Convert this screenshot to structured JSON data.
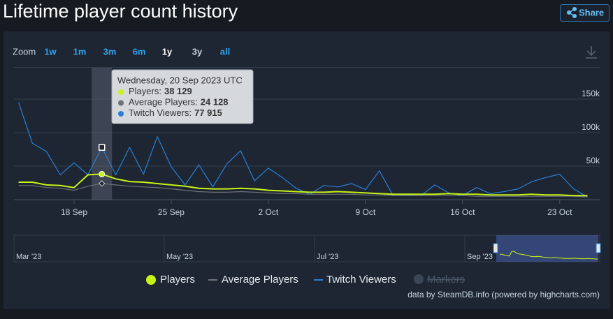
{
  "chart_data": {
    "type": "line",
    "title": "Lifetime player count history",
    "share_label": "Share",
    "zoom_label": "Zoom",
    "zoom_options": [
      "1w",
      "1m",
      "3m",
      "6m",
      "1y",
      "3y",
      "all"
    ],
    "x": [
      "2023-09-14",
      "2023-09-15",
      "2023-09-16",
      "2023-09-17",
      "2023-09-18",
      "2023-09-19",
      "2023-09-20",
      "2023-09-21",
      "2023-09-22",
      "2023-09-23",
      "2023-09-24",
      "2023-09-25",
      "2023-09-26",
      "2023-09-27",
      "2023-09-28",
      "2023-09-29",
      "2023-09-30",
      "2023-10-01",
      "2023-10-02",
      "2023-10-03",
      "2023-10-04",
      "2023-10-05",
      "2023-10-06",
      "2023-10-07",
      "2023-10-08",
      "2023-10-09",
      "2023-10-10",
      "2023-10-11",
      "2023-10-12",
      "2023-10-13",
      "2023-10-14",
      "2023-10-15",
      "2023-10-16",
      "2023-10-17",
      "2023-10-18",
      "2023-10-19",
      "2023-10-20",
      "2023-10-21",
      "2023-10-22",
      "2023-10-23",
      "2023-10-24",
      "2023-10-25"
    ],
    "xticks": [
      {
        "value": "2023-09-18",
        "label": "18 Sep"
      },
      {
        "value": "2023-09-25",
        "label": "25 Sep"
      },
      {
        "value": "2023-10-02",
        "label": "2 Oct"
      },
      {
        "value": "2023-10-09",
        "label": "9 Oct"
      },
      {
        "value": "2023-10-16",
        "label": "16 Oct"
      },
      {
        "value": "2023-10-23",
        "label": "23 Oct"
      }
    ],
    "ylim": [
      0,
      200000
    ],
    "yticks": [
      {
        "value": 50000,
        "label": "50k"
      },
      {
        "value": 100000,
        "label": "100k"
      },
      {
        "value": 150000,
        "label": "150k"
      }
    ],
    "grid": true,
    "series": [
      {
        "name": "Players",
        "color": "#c8f414",
        "values": [
          26000,
          26000,
          22000,
          21000,
          18000,
          37000,
          38129,
          31000,
          27000,
          26000,
          24000,
          22000,
          20000,
          17000,
          16000,
          16000,
          17000,
          16000,
          14000,
          13000,
          12000,
          11000,
          11000,
          12000,
          11000,
          10000,
          9000,
          8000,
          8000,
          8000,
          8000,
          9000,
          8000,
          8000,
          7000,
          7000,
          7000,
          8000,
          7000,
          7000,
          6000,
          6000
        ]
      },
      {
        "name": "Average Players",
        "color": "#6e7177",
        "values": [
          21000,
          21000,
          18000,
          17000,
          14000,
          20000,
          24128,
          22000,
          20000,
          19000,
          18000,
          16000,
          14000,
          12000,
          11000,
          11000,
          12000,
          11000,
          10000,
          9000,
          9000,
          8000,
          8000,
          8000,
          8000,
          7000,
          7000,
          6000,
          6000,
          6000,
          6000,
          6000,
          6000,
          5000,
          5000,
          5000,
          5000,
          5000,
          5000,
          5000,
          5000,
          4000
        ]
      },
      {
        "name": "Twitch Viewers",
        "color": "#2a7fd4",
        "values": [
          145000,
          84000,
          72000,
          37000,
          55000,
          37000,
          77915,
          37000,
          78000,
          38000,
          94000,
          49000,
          22000,
          52000,
          19000,
          53000,
          73000,
          28000,
          47000,
          33000,
          17000,
          8000,
          21000,
          19000,
          24000,
          15000,
          43000,
          6000,
          7000,
          6000,
          22000,
          10000,
          6000,
          18000,
          9000,
          12000,
          16000,
          27000,
          33000,
          38000,
          16000,
          4000
        ]
      }
    ],
    "markers_legend": "Markers",
    "tooltip": {
      "index": 6,
      "title": "Wednesday, 20 Sep 2023 UTC",
      "names": [
        "Players:",
        "Average Players:",
        "Twitch Viewers:"
      ],
      "values": [
        "38 129",
        "24 128",
        "77 915"
      ]
    },
    "navigator_labels": [
      "Mar '23",
      "May '23",
      "Jul '23",
      "Sep '23"
    ],
    "credits": "data by SteamDB.info (powered by highcharts.com)"
  }
}
